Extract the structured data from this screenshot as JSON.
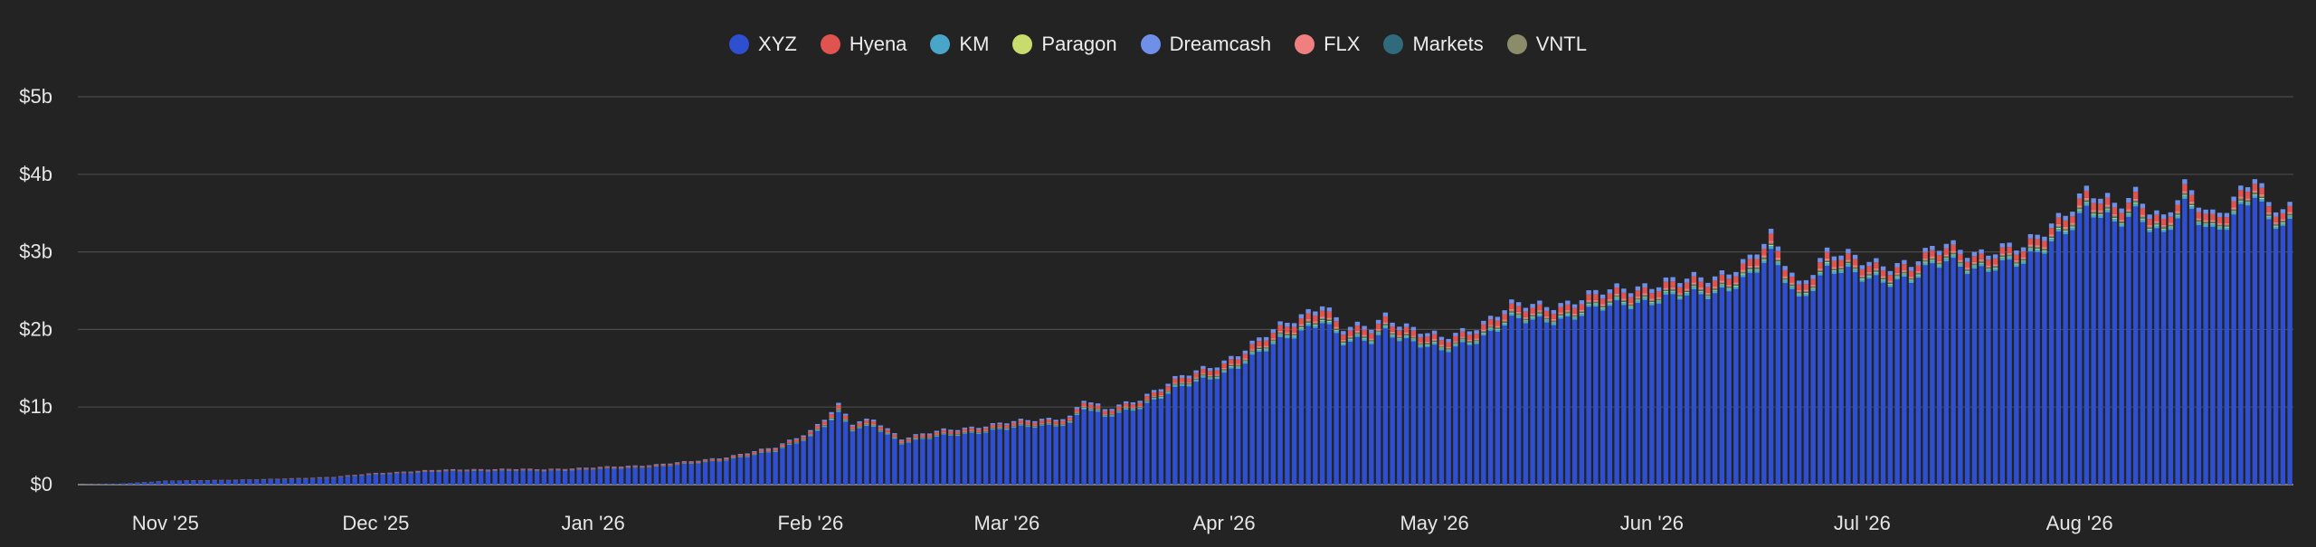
{
  "chart_data": {
    "type": "bar",
    "stacked": true,
    "legend": [
      {
        "name": "XYZ",
        "color": "#2d4fd0"
      },
      {
        "name": "Hyena",
        "color": "#e0534f"
      },
      {
        "name": "KM",
        "color": "#4aa6c9"
      },
      {
        "name": "Paragon",
        "color": "#c8dc6e"
      },
      {
        "name": "Dreamcash",
        "color": "#6f8fe8"
      },
      {
        "name": "FLX",
        "color": "#f08080"
      },
      {
        "name": "Markets",
        "color": "#2f6b7c"
      },
      {
        "name": "VNTL",
        "color": "#8a8c6a"
      }
    ],
    "legend_position": "top-center",
    "y_ticks": [
      "$0",
      "$1b",
      "$2b",
      "$3b",
      "$4b",
      "$5b"
    ],
    "ylim": [
      0,
      5
    ],
    "y_unit": "$b",
    "x_ticks": [
      "Nov '25",
      "Dec '25",
      "Jan '26",
      "Feb '26",
      "Mar '26",
      "Apr '26",
      "May '26",
      "Jun '26",
      "Jul '26",
      "Aug '26"
    ],
    "grid": true,
    "x_start": "2025-10-20",
    "x_end": "2026-08-04",
    "total_anchors": [
      [
        "2025-10-20",
        0.0
      ],
      [
        "2025-10-25",
        0.01
      ],
      [
        "2025-11-01",
        0.05
      ],
      [
        "2025-11-15",
        0.07
      ],
      [
        "2025-11-25",
        0.1
      ],
      [
        "2025-12-01",
        0.15
      ],
      [
        "2025-12-10",
        0.19
      ],
      [
        "2025-12-15",
        0.2
      ],
      [
        "2025-12-25",
        0.2
      ],
      [
        "2026-01-01",
        0.22
      ],
      [
        "2026-01-10",
        0.26
      ],
      [
        "2026-01-15",
        0.3
      ],
      [
        "2026-01-20",
        0.36
      ],
      [
        "2026-01-27",
        0.48
      ],
      [
        "2026-02-01",
        0.7
      ],
      [
        "2026-02-05",
        1.02
      ],
      [
        "2026-02-07",
        0.78
      ],
      [
        "2026-02-10",
        0.85
      ],
      [
        "2026-02-14",
        0.6
      ],
      [
        "2026-02-20",
        0.7
      ],
      [
        "2026-03-01",
        0.8
      ],
      [
        "2026-03-10",
        0.88
      ],
      [
        "2026-03-12",
        1.1
      ],
      [
        "2026-03-15",
        0.96
      ],
      [
        "2026-03-20",
        1.12
      ],
      [
        "2026-03-25",
        1.35
      ],
      [
        "2026-04-01",
        1.6
      ],
      [
        "2026-04-05",
        1.8
      ],
      [
        "2026-04-10",
        2.1
      ],
      [
        "2026-04-15",
        2.35
      ],
      [
        "2026-04-18",
        2.0
      ],
      [
        "2026-04-22",
        2.05
      ],
      [
        "2026-04-24",
        2.2
      ],
      [
        "2026-04-28",
        2.0
      ],
      [
        "2026-05-02",
        1.88
      ],
      [
        "2026-05-08",
        2.1
      ],
      [
        "2026-05-12",
        2.3
      ],
      [
        "2026-05-20",
        2.35
      ],
      [
        "2026-05-28",
        2.55
      ],
      [
        "2026-06-05",
        2.62
      ],
      [
        "2026-06-10",
        2.7
      ],
      [
        "2026-06-15",
        2.9
      ],
      [
        "2026-06-18",
        3.18
      ],
      [
        "2026-06-22",
        2.6
      ],
      [
        "2026-06-26",
        3.0
      ],
      [
        "2026-07-01",
        2.88
      ],
      [
        "2026-07-08",
        2.85
      ],
      [
        "2026-07-13",
        3.1
      ],
      [
        "2026-07-18",
        3.0
      ],
      [
        "2026-07-24",
        3.05
      ],
      [
        "2026-07-28",
        3.4
      ],
      [
        "2026-08-02",
        3.75
      ],
      [
        "2026-08-06",
        3.6
      ],
      [
        "2026-08-09",
        3.8
      ],
      [
        "2026-08-13",
        3.4
      ],
      [
        "2026-08-16",
        3.8
      ],
      [
        "2026-08-20",
        3.5
      ],
      [
        "2026-08-24",
        3.78
      ],
      [
        "2026-08-26",
        3.96
      ],
      [
        "2026-08-28",
        3.55
      ],
      [
        "2026-08-31",
        3.58
      ]
    ],
    "segment_shares": {
      "XYZ": 0.9,
      "Hyena": 0.035,
      "KM": 0.015,
      "Paragon": 0.005,
      "Dreamcash": 0.025,
      "FLX": 0.01,
      "Markets": 0.005,
      "VNTL": 0.005
    }
  }
}
